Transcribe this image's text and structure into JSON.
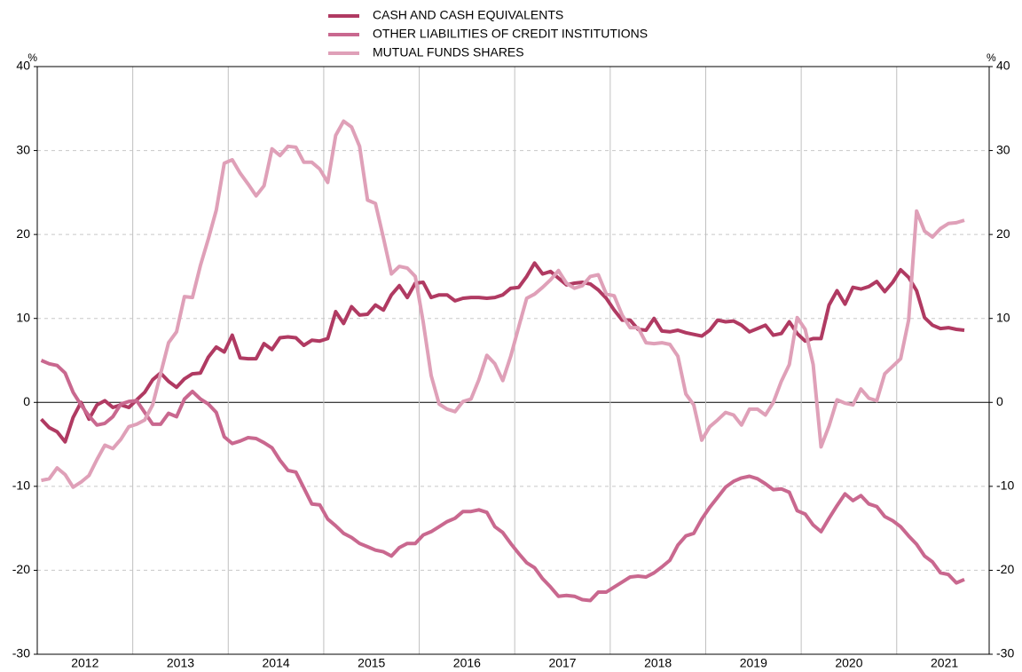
{
  "chart_data": {
    "type": "line",
    "categories": [
      null,
      null,
      null,
      null,
      null,
      null,
      "2012",
      null,
      null,
      null,
      null,
      null,
      null,
      null,
      null,
      null,
      null,
      null,
      "2013",
      null,
      null,
      null,
      null,
      null,
      null,
      null,
      null,
      null,
      null,
      null,
      "2014",
      null,
      null,
      null,
      null,
      null,
      null,
      null,
      null,
      null,
      null,
      null,
      "2015",
      null,
      null,
      null,
      null,
      null,
      null,
      null,
      null,
      null,
      null,
      null,
      "2016",
      null,
      null,
      null,
      null,
      null,
      null,
      null,
      null,
      null,
      null,
      null,
      "2017",
      null,
      null,
      null,
      null,
      null,
      null,
      null,
      null,
      null,
      null,
      null,
      "2018",
      null,
      null,
      null,
      null,
      null,
      null,
      null,
      null,
      null,
      null,
      null,
      "2019",
      null,
      null,
      null,
      null,
      null,
      null,
      null,
      null,
      null,
      null,
      null,
      "2020",
      null,
      null,
      null,
      null,
      null,
      null,
      null,
      null,
      null,
      null,
      null,
      "2021",
      null,
      null
    ],
    "series": [
      {
        "name": "CASH AND CASH EQUIVALENTS",
        "color": "#b03a62",
        "values": [
          -2,
          -3,
          -3.5,
          -4.7,
          -1.8,
          0,
          -2,
          -0.3,
          0.2,
          -0.6,
          -0.3,
          -0.6,
          0.3,
          1.2,
          2.7,
          3.5,
          2.5,
          1.8,
          2.8,
          3.4,
          3.5,
          5.4,
          6.6,
          6.0,
          8.0,
          5.3,
          5.2,
          5.2,
          7.0,
          6.3,
          7.7,
          7.8,
          7.7,
          6.8,
          7.4,
          7.3,
          7.6,
          10.8,
          9.4,
          11.4,
          10.4,
          10.5,
          11.6,
          11.0,
          12.8,
          13.9,
          12.5,
          14.2,
          14.3,
          12.5,
          12.8,
          12.8,
          12.1,
          12.4,
          12.5,
          12.5,
          12.4,
          12.5,
          12.8,
          13.6,
          13.7,
          15.0,
          16.6,
          15.3,
          15.6,
          14.8,
          14.0,
          14.2,
          14.3,
          14.1,
          13.4,
          12.4,
          11.0,
          9.8,
          9.8,
          8.7,
          8.6,
          10.0,
          8.5,
          8.4,
          8.6,
          8.3,
          8.1,
          7.9,
          8.6,
          9.8,
          9.6,
          9.7,
          9.2,
          8.4,
          8.8,
          9.2,
          8.0,
          8.2,
          9.6,
          8.2,
          7.3,
          7.6,
          7.6,
          11.6,
          13.3,
          11.7,
          13.7,
          13.5,
          13.8,
          14.4,
          13.2,
          14.3,
          15.8,
          14.9,
          13.3,
          10.1,
          9.2,
          8.8,
          8.9,
          8.7,
          8.6
        ]
      },
      {
        "name": "OTHER LIABILITIES OF CREDIT INSTITUTIONS",
        "color": "#c9688f",
        "values": [
          5.0,
          4.6,
          4.4,
          3.5,
          1.2,
          -0.3,
          -1.6,
          -2.7,
          -2.5,
          -1.7,
          -0.2,
          0.1,
          0.2,
          -1.2,
          -2.6,
          -2.6,
          -1.3,
          -1.7,
          0.4,
          1.3,
          0.4,
          -0.2,
          -1.2,
          -4.1,
          -4.9,
          -4.6,
          -4.2,
          -4.3,
          -4.8,
          -5.4,
          -6.9,
          -8.1,
          -8.3,
          -10.2,
          -12.1,
          -12.2,
          -13.9,
          -14.7,
          -15.6,
          -16.1,
          -16.8,
          -17.2,
          -17.6,
          -17.8,
          -18.3,
          -17.3,
          -16.8,
          -16.8,
          -15.8,
          -15.4,
          -14.8,
          -14.2,
          -13.8,
          -13.0,
          -13.0,
          -12.8,
          -13.1,
          -14.8,
          -15.5,
          -16.8,
          -18.0,
          -19.1,
          -19.7,
          -21.0,
          -22.0,
          -23.1,
          -23.0,
          -23.1,
          -23.5,
          -23.6,
          -22.6,
          -22.6,
          -22.0,
          -21.4,
          -20.8,
          -20.7,
          -20.8,
          -20.3,
          -19.6,
          -18.8,
          -17.0,
          -15.9,
          -15.6,
          -13.9,
          -12.5,
          -11.3,
          -10.1,
          -9.4,
          -9.0,
          -8.8,
          -9.1,
          -9.7,
          -10.4,
          -10.3,
          -10.7,
          -12.9,
          -13.3,
          -14.6,
          -15.4,
          -13.8,
          -12.3,
          -10.9,
          -11.7,
          -11.1,
          -12.1,
          -12.4,
          -13.6,
          -14.1,
          -14.8,
          -15.9,
          -16.9,
          -18.3,
          -19.0,
          -20.3,
          -20.5,
          -21.5,
          -21.1
        ]
      },
      {
        "name": "MUTUAL FUNDS SHARES",
        "color": "#dfa0b8",
        "values": [
          -9.3,
          -9.1,
          -7.8,
          -8.6,
          -10.1,
          -9.5,
          -8.7,
          -6.8,
          -5.1,
          -5.5,
          -4.4,
          -2.9,
          -2.6,
          -2.1,
          -0.3,
          3.4,
          7.1,
          8.4,
          12.6,
          12.5,
          16.3,
          19.5,
          22.9,
          28.5,
          28.9,
          27.3,
          26.0,
          24.6,
          25.8,
          30.2,
          29.4,
          30.5,
          30.4,
          28.6,
          28.6,
          27.8,
          26.2,
          31.8,
          33.5,
          32.8,
          30.5,
          24.1,
          23.7,
          19.6,
          15.3,
          16.2,
          16.0,
          15.0,
          9.6,
          3.2,
          -0.2,
          -0.8,
          -1.1,
          0.1,
          0.4,
          2.7,
          5.6,
          4.6,
          2.6,
          5.5,
          9.0,
          12.4,
          12.9,
          13.7,
          14.6,
          15.7,
          14.2,
          13.6,
          13.9,
          15.0,
          15.2,
          12.9,
          12.7,
          10.4,
          8.9,
          8.9,
          7.1,
          7.0,
          7.1,
          6.9,
          5.5,
          1.0,
          -0.3,
          -4.5,
          -2.9,
          -2.1,
          -1.2,
          -1.5,
          -2.7,
          -0.8,
          -0.8,
          -1.5,
          0.0,
          2.5,
          4.5,
          10.1,
          8.7,
          4.5,
          -5.3,
          -2.8,
          0.3,
          -0.1,
          -0.3,
          1.6,
          0.5,
          0.2,
          3.4,
          4.3,
          5.2,
          9.8,
          22.8,
          20.4,
          19.7,
          20.7,
          21.3,
          21.4,
          21.7
        ]
      }
    ],
    "y_unit": "%",
    "y2_unit": "%",
    "ylim": [
      -30,
      40
    ],
    "yticks": [
      -30,
      -20,
      -10,
      0,
      10,
      20,
      30,
      40
    ],
    "y2lim": [
      -30,
      40
    ],
    "y2ticks": [
      -30,
      -20,
      -10,
      0,
      10,
      20,
      30,
      40
    ],
    "grid": true
  }
}
